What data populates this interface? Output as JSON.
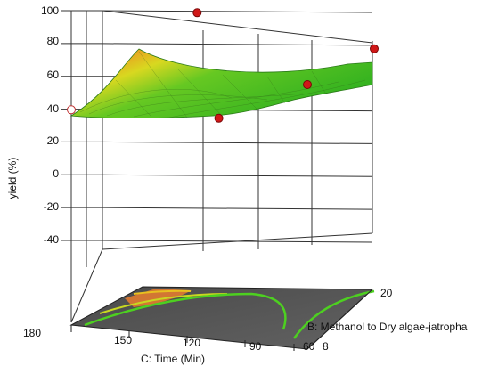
{
  "chart_data": {
    "type": "surface3d",
    "zlabel": "yield (%)",
    "xlabel": "C: Time (Min)",
    "ylabel": "B: Methanol to Dry algae-jatropha",
    "z_ticks": [
      100,
      80,
      60,
      40,
      20,
      0,
      -20,
      -40
    ],
    "zlim": [
      -40,
      100
    ],
    "x_ticks": [
      180,
      150,
      120,
      90,
      60
    ],
    "y_ticks": [
      20,
      8
    ],
    "design_points": [
      {
        "time_min": 150,
        "methanol_ratio": 20,
        "yield": 78
      },
      {
        "time_min": 105,
        "methanol_ratio": 8,
        "yield": 42
      },
      {
        "time_min": 60,
        "methanol_ratio": 8,
        "yield": 68
      },
      {
        "time_min": 60,
        "methanol_ratio": 20,
        "yield": 67
      },
      {
        "time_min": 180,
        "methanol_ratio": 8,
        "yield": 38
      }
    ],
    "colors": {
      "surface_high": "#e04020",
      "surface_mid": "#e8d020",
      "surface_low": "#3fbf20",
      "point": "#d01818",
      "contour_line": "#4dd020",
      "floor": "#555555"
    }
  }
}
